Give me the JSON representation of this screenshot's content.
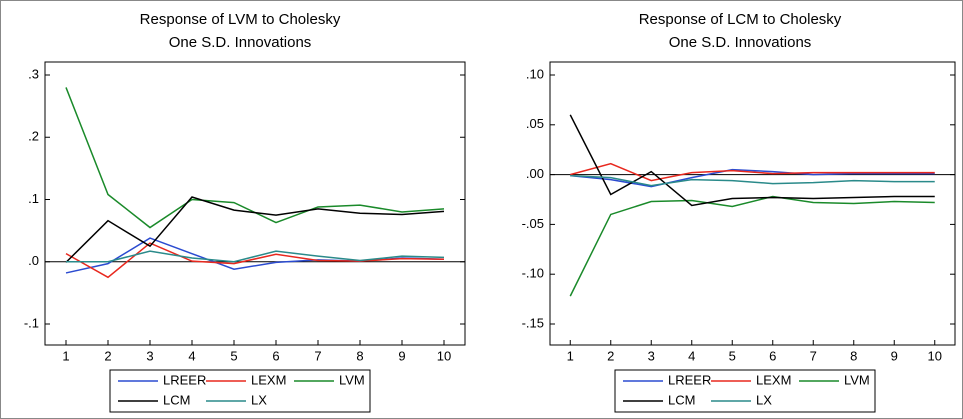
{
  "chart_data": [
    {
      "type": "line",
      "title": "Response of LVM to Cholesky",
      "subtitle": "One S.D. Innovations",
      "categories": [
        "1",
        "2",
        "3",
        "4",
        "5",
        "6",
        "7",
        "8",
        "9",
        "10"
      ],
      "ylim": [
        -0.1,
        0.3
      ],
      "yticks": [
        {
          "value": 0.3,
          "label": ".3"
        },
        {
          "value": 0.2,
          "label": ".2"
        },
        {
          "value": 0.1,
          "label": ".1"
        },
        {
          "value": 0,
          "label": ".0"
        },
        {
          "value": -0.1,
          "label": "-.1"
        }
      ],
      "series": [
        {
          "name": "LREER",
          "color": "#2b4bd0",
          "values": [
            -0.018,
            -0.003,
            0.038,
            0.013,
            -0.012,
            -0.001,
            0.003,
            0.001,
            0.006,
            0.004
          ]
        },
        {
          "name": "LEXM",
          "color": "#e8281e",
          "values": [
            0.013,
            -0.025,
            0.03,
            0.001,
            -0.003,
            0.012,
            0.002,
            0.001,
            0.005,
            0.004
          ]
        },
        {
          "name": "LVM",
          "color": "#1a8a2a",
          "values": [
            0.28,
            0.108,
            0.055,
            0.1,
            0.095,
            0.063,
            0.088,
            0.091,
            0.08,
            0.085
          ]
        },
        {
          "name": "LCM",
          "color": "#000000",
          "values": [
            -0.001,
            0.066,
            0.025,
            0.104,
            0.083,
            0.075,
            0.085,
            0.078,
            0.076,
            0.081
          ]
        },
        {
          "name": "LX",
          "color": "#2a8a8a",
          "values": [
            0.0,
            0.0,
            0.017,
            0.006,
            0.0,
            0.017,
            0.009,
            0.002,
            0.009,
            0.007
          ]
        }
      ]
    },
    {
      "type": "line",
      "title": "Response of LCM to Cholesky",
      "subtitle": "One S.D. Innovations",
      "categories": [
        "1",
        "2",
        "3",
        "4",
        "5",
        "6",
        "7",
        "8",
        "9",
        "10"
      ],
      "ylim": [
        -0.15,
        0.1
      ],
      "yticks": [
        {
          "value": 0.1,
          "label": ".10"
        },
        {
          "value": 0.05,
          "label": ".05"
        },
        {
          "value": 0,
          "label": ".00"
        },
        {
          "value": -0.05,
          "label": "-.05"
        },
        {
          "value": -0.1,
          "label": "-.10"
        },
        {
          "value": -0.15,
          "label": "-.15"
        }
      ],
      "series": [
        {
          "name": "LREER",
          "color": "#2b4bd0",
          "values": [
            -0.001,
            -0.005,
            -0.012,
            -0.003,
            0.005,
            0.003,
            0.0,
            0.001,
            0.001,
            0.001
          ]
        },
        {
          "name": "LEXM",
          "color": "#e8281e",
          "values": [
            0.0,
            0.011,
            -0.006,
            0.002,
            0.004,
            0.001,
            0.002,
            0.002,
            0.002,
            0.002
          ]
        },
        {
          "name": "LVM",
          "color": "#1a8a2a",
          "values": [
            -0.122,
            -0.04,
            -0.027,
            -0.026,
            -0.032,
            -0.022,
            -0.028,
            -0.029,
            -0.027,
            -0.028
          ]
        },
        {
          "name": "LCM",
          "color": "#000000",
          "values": [
            0.06,
            -0.02,
            0.003,
            -0.031,
            -0.024,
            -0.023,
            -0.024,
            -0.023,
            -0.022,
            -0.022
          ]
        },
        {
          "name": "LX",
          "color": "#2a8a8a",
          "values": [
            -0.001,
            -0.003,
            -0.011,
            -0.005,
            -0.006,
            -0.009,
            -0.008,
            -0.006,
            -0.007,
            -0.007
          ]
        }
      ]
    }
  ]
}
